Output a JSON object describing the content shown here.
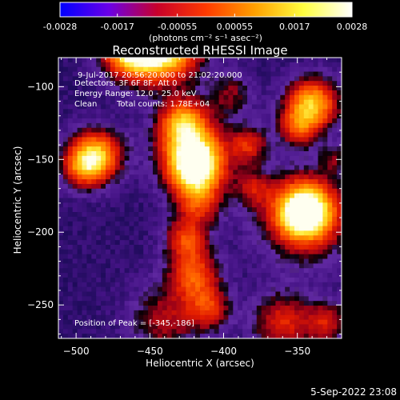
{
  "colorbar": {
    "ticks": [
      "-0.0028",
      "-0.0017",
      "-0.00055",
      "0.00055",
      "0.0017",
      "0.0028"
    ],
    "tick_values": [
      -0.0028,
      -0.0017,
      -0.00055,
      0.00055,
      0.0017,
      0.0028
    ],
    "range": [
      -0.0028,
      0.0028
    ],
    "units_label": "(photons cm⁻² s⁻¹ asec⁻²)",
    "colors": [
      "#0000ff",
      "#6a00e8",
      "#c8002a",
      "#ff3a00",
      "#ffa000",
      "#ffff40",
      "#ffffff"
    ]
  },
  "chart_data": {
    "type": "heatmap",
    "title": "Reconstructed RHESSI Image",
    "xlabel": "Heliocentric X (arcsec)",
    "ylabel": "Heliocentric Y (arcsec)",
    "xlim": [
      -512,
      -320
    ],
    "ylim": [
      -273,
      -80
    ],
    "xticks": [
      -500,
      -450,
      -400,
      -350
    ],
    "yticks": [
      -100,
      -150,
      -200,
      -250
    ],
    "grid": false,
    "sources": [
      {
        "x": -440,
        "y": -72,
        "w": 16,
        "amp": 1.0
      },
      {
        "x": -463,
        "y": -75,
        "w": 13,
        "amp": 0.8
      },
      {
        "x": -345,
        "y": -186,
        "w": 13,
        "amp": 1.0
      },
      {
        "x": -345,
        "y": -190,
        "w": 22,
        "amp": 0.35
      },
      {
        "x": -419,
        "y": -155,
        "w": 13,
        "amp": 0.95
      },
      {
        "x": -422,
        "y": -140,
        "w": 16,
        "amp": 0.45
      },
      {
        "x": -428,
        "y": -124,
        "w": 11,
        "amp": 0.55
      },
      {
        "x": -417,
        "y": -180,
        "w": 11,
        "amp": 0.4
      },
      {
        "x": -425,
        "y": -205,
        "w": 10,
        "amp": 0.45
      },
      {
        "x": -420,
        "y": -230,
        "w": 12,
        "amp": 0.5
      },
      {
        "x": -410,
        "y": -253,
        "w": 10,
        "amp": 0.4
      },
      {
        "x": -440,
        "y": -260,
        "w": 16,
        "amp": 0.3
      },
      {
        "x": -383,
        "y": -140,
        "w": 9,
        "amp": 0.4
      },
      {
        "x": -380,
        "y": -170,
        "w": 9,
        "amp": 0.3
      },
      {
        "x": -340,
        "y": -112,
        "w": 12,
        "amp": 0.75
      },
      {
        "x": -350,
        "y": -128,
        "w": 9,
        "amp": 0.4
      },
      {
        "x": -486,
        "y": -147,
        "w": 12,
        "amp": 0.7
      },
      {
        "x": -495,
        "y": -155,
        "w": 10,
        "amp": 0.45
      },
      {
        "x": -360,
        "y": -262,
        "w": 14,
        "amp": 0.4
      },
      {
        "x": -330,
        "y": -262,
        "w": 10,
        "amp": 0.35
      },
      {
        "x": -325,
        "y": -150,
        "w": 7,
        "amp": 0.2
      },
      {
        "x": -395,
        "y": -105,
        "w": 10,
        "amp": 0.25
      }
    ],
    "peak": {
      "x": -345,
      "y": -186
    }
  },
  "annotations": {
    "time": "9-Jul-2017 20:56:20.000 to 21:02:20.000",
    "detectors": "Detectors: 3F 6F 8F, Att 0",
    "energy": "Energy Range: 12.0 - 25.0 keV",
    "method": "Clean",
    "counts": "Total counts: 1.78E+04",
    "peak_label": "Position of Peak = [-345,-186]"
  },
  "footer": {
    "date": "5-Sep-2022 23:08"
  }
}
